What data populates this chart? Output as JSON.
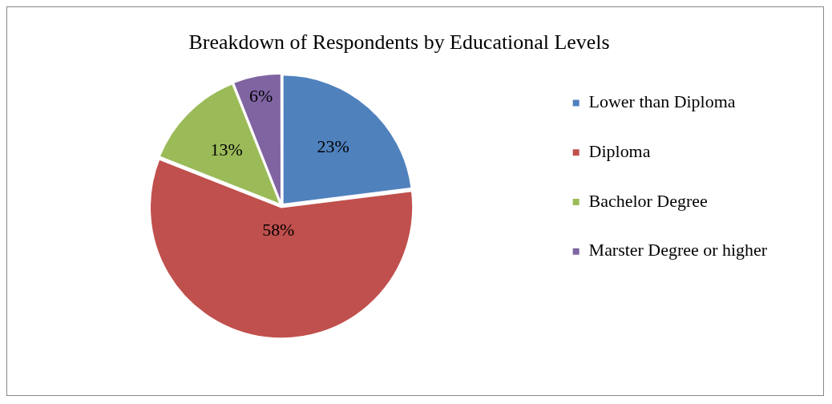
{
  "chart_data": {
    "type": "pie",
    "title": "Breakdown of Respondents by Educational Levels",
    "categories": [
      "Lower than Diploma",
      "Diploma",
      "Bachelor Degree",
      "Marster Degree or higher"
    ],
    "values": [
      23,
      58,
      13,
      6
    ],
    "colors": [
      "#4f81bd",
      "#c0504d",
      "#9bbb59",
      "#8064a2"
    ],
    "value_labels": [
      "23%",
      "58%",
      "13%",
      "6%"
    ],
    "legend": "right"
  }
}
